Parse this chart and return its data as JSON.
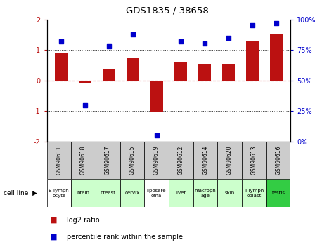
{
  "title": "GDS1835 / 38658",
  "samples": [
    "GSM90611",
    "GSM90618",
    "GSM90617",
    "GSM90615",
    "GSM90619",
    "GSM90612",
    "GSM90614",
    "GSM90620",
    "GSM90613",
    "GSM90616"
  ],
  "cell_lines": [
    "B lymph\nocyte",
    "brain",
    "breast",
    "cervix",
    "liposare\noma",
    "liver",
    "macroph\nage",
    "skin",
    "T lymph\noblast",
    "testis"
  ],
  "log2_ratio": [
    0.9,
    -0.1,
    0.35,
    0.75,
    -1.05,
    0.6,
    0.55,
    0.55,
    1.3,
    1.5
  ],
  "percentile_rank": [
    82,
    30,
    78,
    88,
    5,
    82,
    80,
    85,
    95,
    97
  ],
  "ylim_left": [
    -2,
    2
  ],
  "bar_color": "#bb1111",
  "dot_color": "#0000cc",
  "zero_line_color": "#cc2222",
  "dotted_line_color": "#333333",
  "bg_color": "#ffffff",
  "plot_bg": "#ffffff",
  "sample_bg": "#cccccc",
  "cell_line_bg": [
    "#ffffff",
    "#ccffcc",
    "#ccffcc",
    "#ccffcc",
    "#ffffff",
    "#ccffcc",
    "#ccffcc",
    "#ccffcc",
    "#ccffcc",
    "#33cc44"
  ],
  "legend_log2": "log2 ratio",
  "legend_pct": "percentile rank within the sample",
  "cell_line_label": "cell line",
  "left_yticks": [
    -2,
    -1,
    0,
    1,
    2
  ],
  "right_yticks": [
    0,
    25,
    50,
    75,
    100
  ],
  "right_yticklabels": [
    "0%",
    "25%",
    "50%",
    "75%",
    "100%"
  ]
}
